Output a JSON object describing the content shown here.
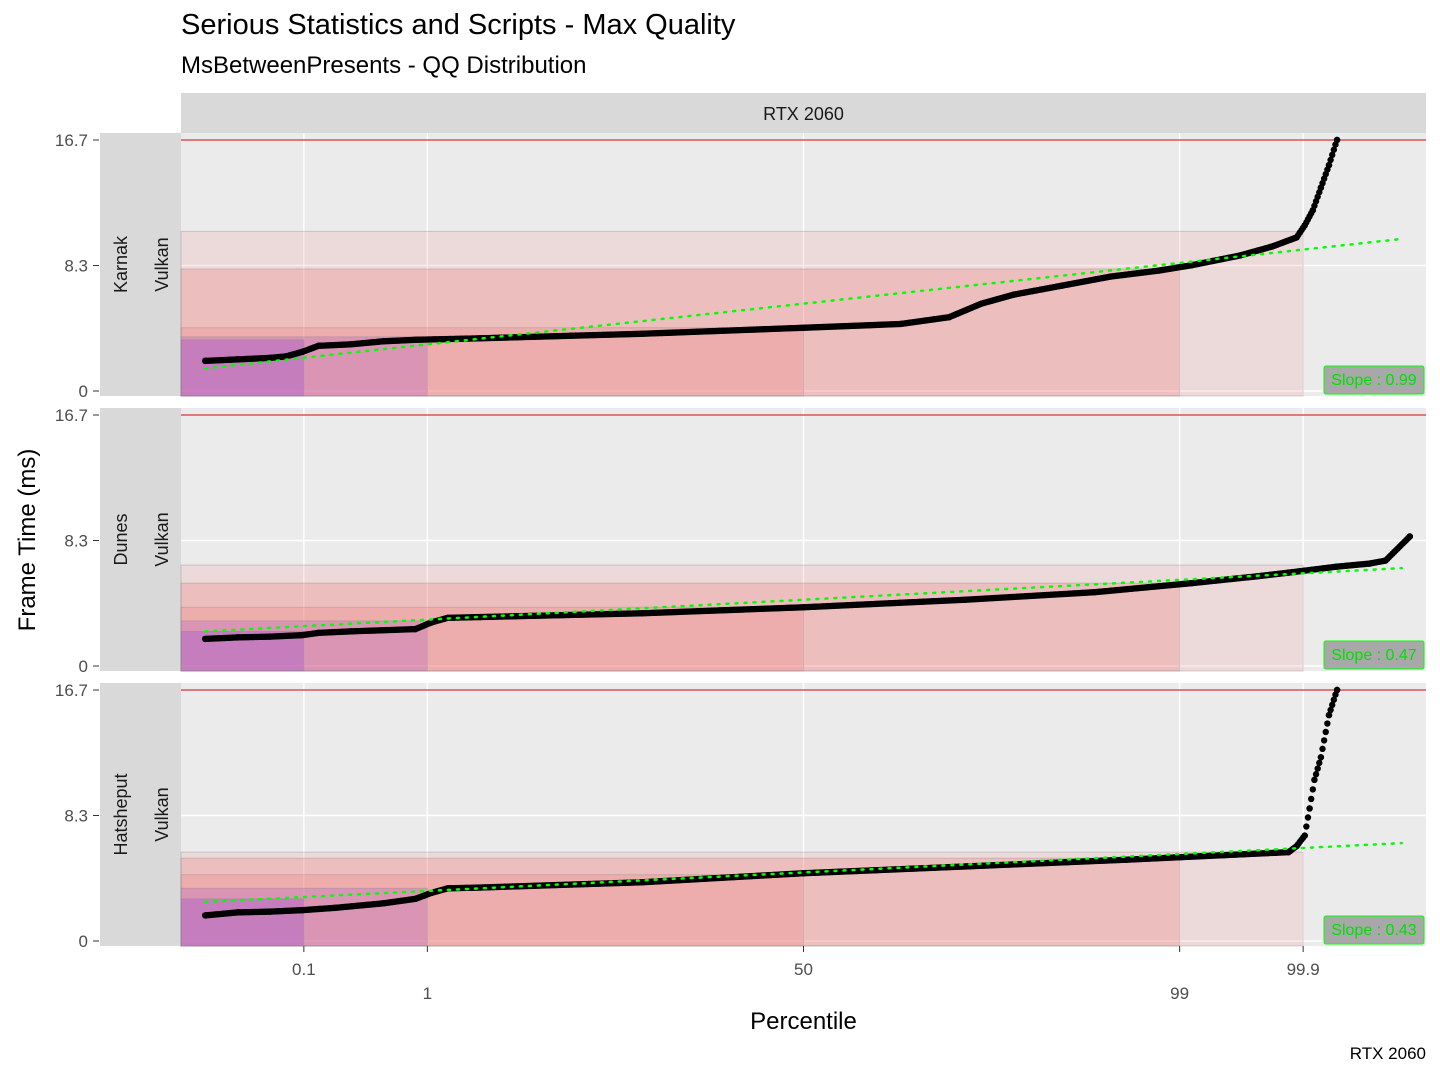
{
  "title": "Serious Statistics and Scripts - Max Quality",
  "subtitle": "MsBetweenPresents - QQ Distribution",
  "caption": "RTX 2060",
  "colors": {
    "panel_bg": "#ebebeb",
    "strip_bg": "#d9d9d9",
    "grid": "#ffffff",
    "points": "#000000",
    "fit_line": "#00ff00",
    "limit_line": "#cc0000",
    "band_low": "#9e4fcf",
    "band_high": "#f07070"
  },
  "chart_data": {
    "type": "scatter",
    "description_of_axes": "Normal QQ plot of frame times",
    "xlabel": "Percentile",
    "ylabel": "Frame Time (ms)",
    "x_ticks": [
      {
        "label": "0.1",
        "percentile": 0.1
      },
      {
        "label": "1",
        "percentile": 1
      },
      {
        "label": "50",
        "percentile": 50
      },
      {
        "label": "99",
        "percentile": 99
      },
      {
        "label": "99.9",
        "percentile": 99.9
      }
    ],
    "y_ticks": [
      {
        "label": "0",
        "value": 0
      },
      {
        "label": "8.3",
        "value": 8.333
      },
      {
        "label": "16.7",
        "value": 16.667
      }
    ],
    "ylim": [
      0,
      16.667
    ],
    "xlim_z": [
      -3.85,
      3.85
    ],
    "column_strip": "RTX 2060",
    "limit_line_value": 16.667,
    "panels": [
      {
        "row_strip": "Karnak",
        "api_strip": "Vulkan",
        "slope_label": "Slope : 0.99",
        "bands": {
          "p0_1": 3.4,
          "p1": 3.6,
          "p50": 4.2,
          "p99": 8.1,
          "p99_9": 10.6
        },
        "fit": {
          "start": [
            -3.7,
            1.5
          ],
          "end": [
            3.7,
            10.1
          ]
        },
        "curve": [
          [
            -3.7,
            2.0
          ],
          [
            -3.5,
            2.1
          ],
          [
            -3.3,
            2.2
          ],
          [
            -3.2,
            2.3
          ],
          [
            -3.1,
            2.6
          ],
          [
            -3.0,
            3.0
          ],
          [
            -2.8,
            3.1
          ],
          [
            -2.6,
            3.3
          ],
          [
            -2.4,
            3.4
          ],
          [
            -2.0,
            3.5
          ],
          [
            -1.0,
            3.8
          ],
          [
            0.0,
            4.2
          ],
          [
            0.6,
            4.45
          ],
          [
            0.9,
            4.9
          ],
          [
            1.1,
            5.8
          ],
          [
            1.3,
            6.4
          ],
          [
            1.6,
            7.0
          ],
          [
            1.9,
            7.6
          ],
          [
            2.2,
            8.0
          ],
          [
            2.4,
            8.35
          ],
          [
            2.7,
            9.0
          ],
          [
            2.9,
            9.6
          ],
          [
            3.05,
            10.2
          ],
          [
            3.1,
            11.0
          ],
          [
            3.15,
            12.0
          ],
          [
            3.2,
            13.5
          ],
          [
            3.25,
            15.0
          ],
          [
            3.3,
            16.7
          ]
        ]
      },
      {
        "row_strip": "Dunes",
        "api_strip": "Vulkan",
        "slope_label": "Slope : 0.47",
        "bands": {
          "p0_1": 2.3,
          "p1": 3.0,
          "p50": 3.9,
          "p99": 5.5,
          "p99_9": 6.7
        },
        "fit": {
          "start": [
            -3.7,
            2.3
          ],
          "end": [
            3.7,
            6.5
          ]
        },
        "curve": [
          [
            -3.7,
            1.8
          ],
          [
            -3.5,
            1.9
          ],
          [
            -3.3,
            1.95
          ],
          [
            -3.1,
            2.05
          ],
          [
            -3.0,
            2.2
          ],
          [
            -2.8,
            2.3
          ],
          [
            -2.4,
            2.45
          ],
          [
            -2.3,
            2.9
          ],
          [
            -2.2,
            3.2
          ],
          [
            -2.0,
            3.25
          ],
          [
            -1.0,
            3.5
          ],
          [
            0.0,
            3.9
          ],
          [
            1.0,
            4.4
          ],
          [
            1.8,
            4.9
          ],
          [
            2.4,
            5.5
          ],
          [
            2.8,
            5.95
          ],
          [
            3.0,
            6.2
          ],
          [
            3.3,
            6.6
          ],
          [
            3.5,
            6.8
          ],
          [
            3.6,
            7.0
          ],
          [
            3.75,
            8.6
          ]
        ]
      },
      {
        "row_strip": "Hatsheput",
        "api_strip": "Vulkan",
        "slope_label": "Slope : 0.43",
        "bands": {
          "p0_1": 2.8,
          "p1": 3.5,
          "p50": 4.4,
          "p99": 5.5,
          "p99_9": 5.9
        },
        "fit": {
          "start": [
            -3.7,
            2.6
          ],
          "end": [
            3.7,
            6.5
          ]
        },
        "curve": [
          [
            -3.7,
            1.7
          ],
          [
            -3.5,
            1.9
          ],
          [
            -3.3,
            1.95
          ],
          [
            -3.1,
            2.05
          ],
          [
            -2.9,
            2.2
          ],
          [
            -2.6,
            2.5
          ],
          [
            -2.4,
            2.8
          ],
          [
            -2.3,
            3.2
          ],
          [
            -2.2,
            3.5
          ],
          [
            -2.0,
            3.55
          ],
          [
            -1.0,
            3.9
          ],
          [
            0.0,
            4.5
          ],
          [
            1.0,
            4.95
          ],
          [
            2.0,
            5.4
          ],
          [
            2.6,
            5.7
          ],
          [
            3.0,
            5.9
          ],
          [
            3.05,
            6.3
          ],
          [
            3.1,
            7.0
          ],
          [
            3.13,
            8.8
          ],
          [
            3.16,
            10.7
          ],
          [
            3.2,
            12.2
          ],
          [
            3.25,
            15.0
          ],
          [
            3.3,
            16.7
          ]
        ]
      }
    ]
  }
}
